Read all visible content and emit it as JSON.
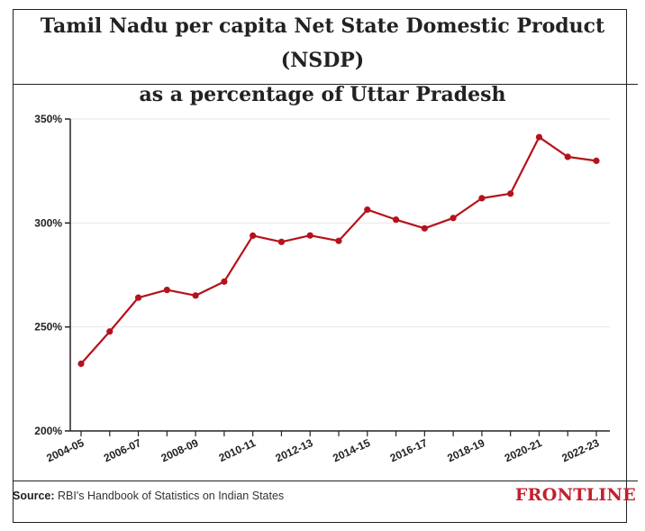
{
  "title_line1": "Tamil Nadu per capita Net State Domestic Product (NSDP)",
  "title_line2": "as a percentage of Uttar Pradesh",
  "source_label": "Source:",
  "source_text": "RBI's Handbook of Statistics on Indian States",
  "brand": "FRONTLINE",
  "colors": {
    "line": "#b5121b",
    "accent": "#c2202d",
    "grid": "#e6e6e6",
    "axis": "#222222"
  },
  "chart_data": {
    "type": "line",
    "title": "Tamil Nadu per capita Net State Domestic Product (NSDP) as a percentage of Uttar Pradesh",
    "xlabel": "",
    "ylabel": "",
    "ylim": [
      200,
      350
    ],
    "yticks": [
      200,
      250,
      300,
      350
    ],
    "ytick_labels": [
      "200%",
      "250%",
      "300%",
      "350%"
    ],
    "grid": true,
    "categories": [
      "2004-05",
      "2005-06",
      "2006-07",
      "2007-08",
      "2008-09",
      "2009-10",
      "2010-11",
      "2011-12",
      "2012-13",
      "2013-14",
      "2014-15",
      "2015-16",
      "2016-17",
      "2017-18",
      "2018-19",
      "2019-20",
      "2020-21",
      "2021-22",
      "2022-23"
    ],
    "x_tick_labels_shown": [
      "2004-05",
      "2006-07",
      "2008-09",
      "2010-11",
      "2012-13",
      "2014-15",
      "2016-17",
      "2018-19",
      "2020-21",
      "2022-23"
    ],
    "series": [
      {
        "values": [
          232.3,
          247.8,
          264.1,
          267.8,
          265.1,
          271.8,
          293.9,
          290.9,
          294.0,
          291.4,
          306.4,
          301.6,
          297.4,
          302.4,
          311.9,
          314.1,
          341.3,
          331.8,
          329.9
        ]
      }
    ]
  }
}
